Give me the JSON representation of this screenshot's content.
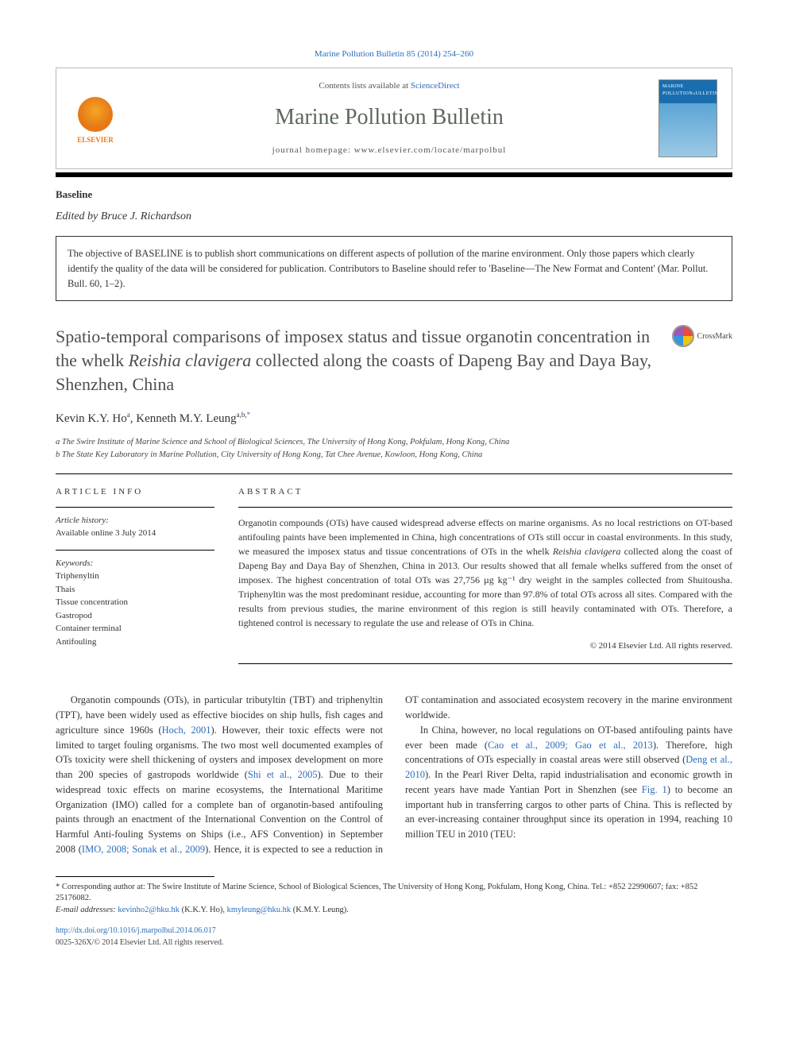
{
  "citation": "Marine Pollution Bulletin 85 (2014) 254–260",
  "header": {
    "contents_prefix": "Contents lists available at ",
    "contents_link": "ScienceDirect",
    "journal": "Marine Pollution Bulletin",
    "homepage": "journal homepage: www.elsevier.com/locate/marpolbul",
    "publisher": "ELSEVIER"
  },
  "section_label": "Baseline",
  "editor_prefix": "Edited by ",
  "editor": "Bruce J. Richardson",
  "objective": "The objective of BASELINE is to publish short communications on different aspects of pollution of the marine environment. Only those papers which clearly identify the quality of the data will be considered for publication. Contributors to Baseline should refer to 'Baseline—The New Format and Content' (Mar. Pollut. Bull. 60, 1–2).",
  "title_pre": "Spatio-temporal comparisons of imposex status and tissue organotin concentration in the whelk ",
  "title_species": "Reishia clavigera",
  "title_post": " collected along the coasts of Dapeng Bay and Daya Bay, Shenzhen, China",
  "crossmark": "CrossMark",
  "authors_html": "Kevin K.Y. Ho",
  "author1_sup": "a",
  "author_sep": ", ",
  "author2": "Kenneth M.Y. Leung",
  "author2_sup": "a,b,",
  "corr_symbol": "*",
  "affiliations": {
    "a": "a The Swire Institute of Marine Science and School of Biological Sciences, The University of Hong Kong, Pokfulam, Hong Kong, China",
    "b": "b The State Key Laboratory in Marine Pollution, City University of Hong Kong, Tat Chee Avenue, Kowloon, Hong Kong, China"
  },
  "article_info": {
    "heading": "ARTICLE INFO",
    "history_label": "Article history:",
    "history": "Available online 3 July 2014",
    "keywords_label": "Keywords:",
    "keywords": [
      "Triphenyltin",
      "Thais",
      "Tissue concentration",
      "Gastropod",
      "Container terminal",
      "Antifouling"
    ]
  },
  "abstract": {
    "heading": "ABSTRACT",
    "body_pre": "Organotin compounds (OTs) have caused widespread adverse effects on marine organisms. As no local restrictions on OT-based antifouling paints have been implemented in China, high concentrations of OTs still occur in coastal environments. In this study, we measured the imposex status and tissue concentrations of OTs in the whelk ",
    "body_species": "Reishia clavigera",
    "body_post": " collected along the coast of Dapeng Bay and Daya Bay of Shenzhen, China in 2013. Our results showed that all female whelks suffered from the onset of imposex. The highest concentration of total OTs was 27,756 µg kg⁻¹ dry weight in the samples collected from Shuitousha. Triphenyltin was the most predominant residue, accounting for more than 97.8% of total OTs across all sites. Compared with the results from previous studies, the marine environment of this region is still heavily contaminated with OTs. Therefore, a tightened control is necessary to regulate the use and release of OTs in China.",
    "copyright": "© 2014 Elsevier Ltd. All rights reserved."
  },
  "body": {
    "p1_a": "Organotin compounds (OTs), in particular tributyltin (TBT) and triphenyltin (TPT), have been widely used as effective biocides on ship hulls, fish cages and agriculture since 1960s (",
    "p1_cite1": "Hoch, 2001",
    "p1_b": "). However, their toxic effects were not limited to target fouling organisms. The two most well documented examples of OTs toxicity were shell thickening of oysters and imposex development on more than 200 species of gastropods worldwide (",
    "p1_cite2": "Shi et al., 2005",
    "p1_c": "). Due to their widespread toxic effects on marine ecosystems, the International Maritime Organization (IMO) called for a complete ",
    "p1_d": "ban of organotin-based antifouling paints through an enactment of the International Convention on the Control of Harmful Anti-fouling Systems on Ships (i.e., AFS Convention) in September 2008 (",
    "p1_cite3": "IMO, 2008; Sonak et al., 2009",
    "p1_e": "). Hence, it is expected to see a reduction in OT contamination and associated ecosystem recovery in the marine environment worldwide.",
    "p2_a": "In China, however, no local regulations on OT-based antifouling paints have ever been made (",
    "p2_cite1": "Cao et al., 2009; Gao et al., 2013",
    "p2_b": "). Therefore, high concentrations of OTs especially in coastal areas were still observed (",
    "p2_cite2": "Deng et al., 2010",
    "p2_c": "). In the Pearl River Delta, rapid industrialisation and economic growth in recent years have made Yantian Port in Shenzhen (see ",
    "p2_cite3": "Fig. 1",
    "p2_d": ") to become an important hub in transferring cargos to other parts of China. This is reflected by an ever-increasing container throughput since its operation in 1994, reaching 10 million TEU in 2010 (TEU:"
  },
  "footnotes": {
    "corr": "* Corresponding author at: The Swire Institute of Marine Science, School of Biological Sciences, The University of Hong Kong, Pokfulam, Hong Kong, China. Tel.: +852 22990607; fax: +852 25176082.",
    "email_label": "E-mail addresses:",
    "email1": "kevinho2@hku.hk",
    "email1_who": " (K.K.Y. Ho), ",
    "email2": "kmyleung@hku.hk",
    "email2_who": " (K.M.Y. Leung)."
  },
  "footer": {
    "doi": "http://dx.doi.org/10.1016/j.marpolbul.2014.06.017",
    "issn": "0025-326X/© 2014 Elsevier Ltd. All rights reserved."
  }
}
